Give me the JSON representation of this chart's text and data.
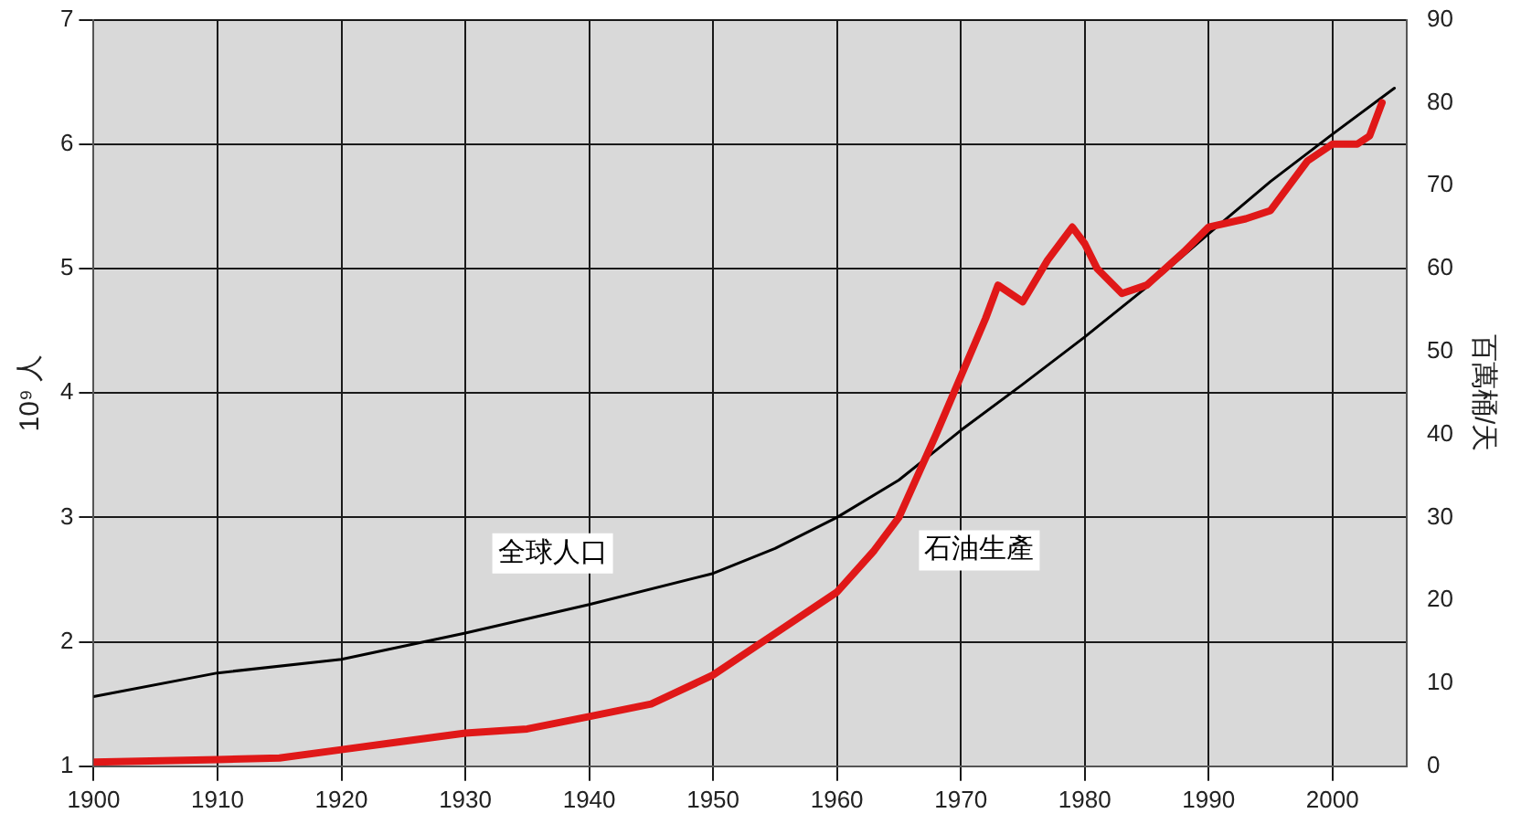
{
  "chart_data": {
    "type": "line",
    "ylabel": "10⁹ 人",
    "y2label": "百萬桶/天",
    "xlim": [
      1900,
      2006
    ],
    "xticks": [
      1900,
      1910,
      1920,
      1930,
      1940,
      1950,
      1960,
      1970,
      1980,
      1990,
      2000
    ],
    "ylim": [
      1,
      7
    ],
    "yticks": [
      1,
      2,
      3,
      4,
      5,
      6,
      7
    ],
    "y2lim": [
      0,
      90
    ],
    "y2ticks": [
      0,
      10,
      20,
      30,
      40,
      50,
      60,
      70,
      80,
      90
    ],
    "grid": true,
    "legend": false,
    "marker": "none",
    "line_style": "solid",
    "series": [
      {
        "name": "全球人口",
        "color": "#000000",
        "x": [
          1900,
          1910,
          1920,
          1930,
          1940,
          1950,
          1955,
          1960,
          1965,
          1970,
          1975,
          1980,
          1985,
          1990,
          1995,
          2000,
          2005
        ],
        "values": [
          1.56,
          1.75,
          1.86,
          2.07,
          2.3,
          2.55,
          2.75,
          3.0,
          3.3,
          3.7,
          4.07,
          4.45,
          4.85,
          5.28,
          5.7,
          6.08,
          6.45
        ]
      },
      {
        "name": "石油生產",
        "color": "#e01818",
        "axis": "y2",
        "x": [
          1900,
          1910,
          1915,
          1920,
          1925,
          1930,
          1935,
          1940,
          1945,
          1950,
          1955,
          1960,
          1963,
          1965,
          1968,
          1970,
          1972,
          1973,
          1975,
          1977,
          1979,
          1980,
          1981,
          1983,
          1985,
          1988,
          1990,
          1993,
          1995,
          1998,
          2000,
          2002,
          2003,
          2004
        ],
        "values": [
          0.5,
          0.8,
          1,
          2,
          3,
          4,
          4.5,
          6,
          7.5,
          11,
          16,
          21,
          26,
          30,
          40,
          47,
          54,
          58,
          56,
          61,
          65,
          63,
          60,
          57,
          58,
          62,
          65,
          66,
          67,
          73,
          75,
          75,
          76,
          80
        ]
      }
    ]
  }
}
